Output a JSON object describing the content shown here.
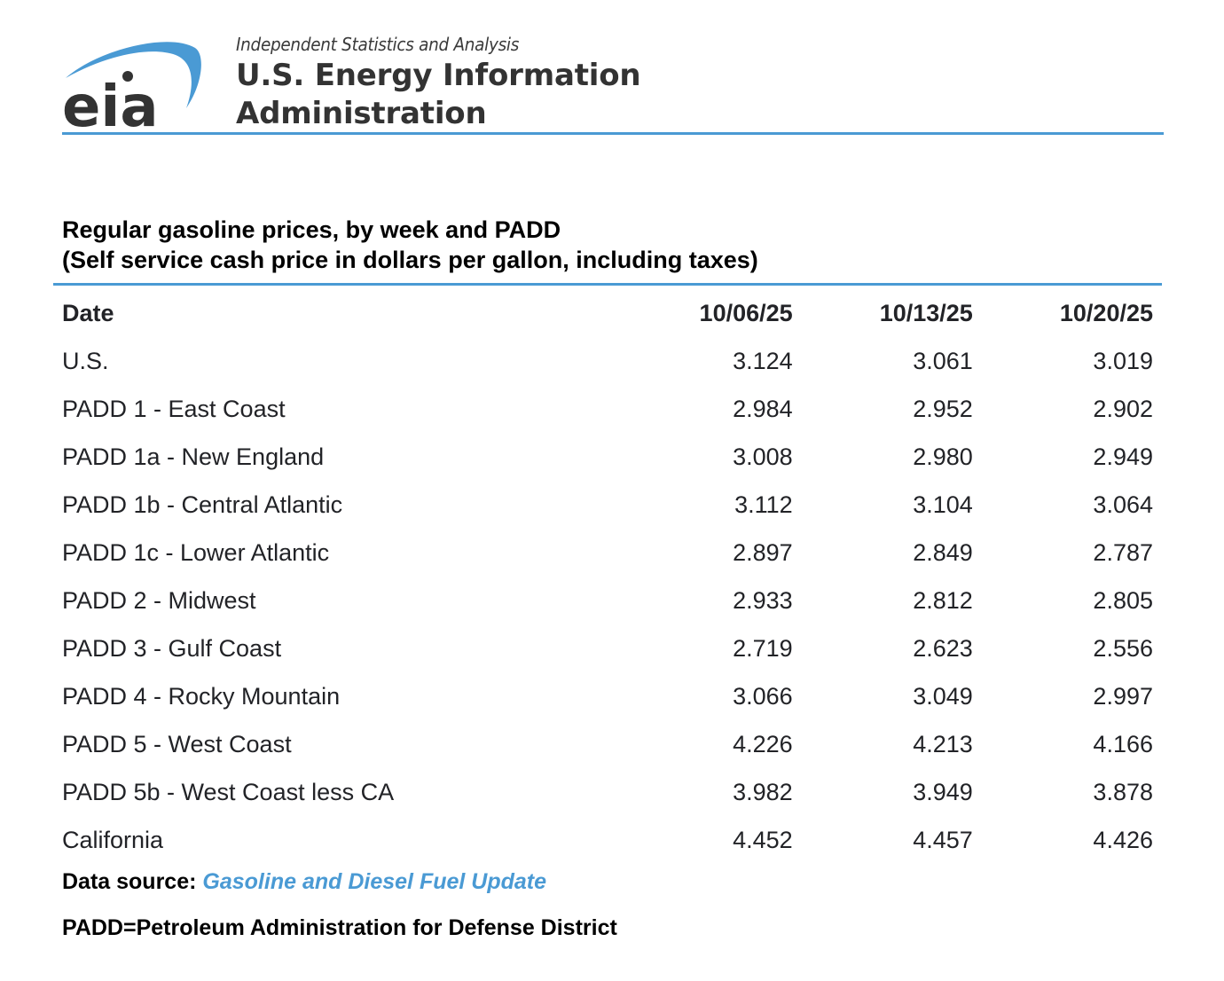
{
  "header": {
    "logo_text": "eia",
    "tagline": "Independent Statistics and Analysis",
    "agency_line1": "U.S. Energy Information",
    "agency_line2": "Administration",
    "accent_color": "#4a9ad4"
  },
  "title": {
    "line1": "Regular gasoline prices, by week and PADD",
    "line2": "(Self service cash price in dollars per gallon, including taxes)"
  },
  "table": {
    "columns": [
      "Date",
      "10/06/25",
      "10/13/25",
      "10/20/25"
    ],
    "rows": [
      {
        "label": "U.S.",
        "values": [
          "3.124",
          "3.061",
          "3.019"
        ]
      },
      {
        "label": "PADD 1 - East Coast",
        "values": [
          "2.984",
          "2.952",
          "2.902"
        ]
      },
      {
        "label": "PADD 1a - New England",
        "values": [
          "3.008",
          "2.980",
          "2.949"
        ]
      },
      {
        "label": "PADD 1b - Central Atlantic",
        "values": [
          "3.112",
          "3.104",
          "3.064"
        ]
      },
      {
        "label": "PADD 1c - Lower Atlantic",
        "values": [
          "2.897",
          "2.849",
          "2.787"
        ]
      },
      {
        "label": "PADD 2 - Midwest",
        "values": [
          "2.933",
          "2.812",
          "2.805"
        ]
      },
      {
        "label": "PADD 3 - Gulf Coast",
        "values": [
          "2.719",
          "2.623",
          "2.556"
        ]
      },
      {
        "label": "PADD 4 - Rocky Mountain",
        "values": [
          "3.066",
          "3.049",
          "2.997"
        ]
      },
      {
        "label": "PADD 5 - West Coast",
        "values": [
          "4.226",
          "4.213",
          "4.166"
        ]
      },
      {
        "label": "PADD 5b - West Coast less CA",
        "values": [
          "3.982",
          "3.949",
          "3.878"
        ]
      },
      {
        "label": "California",
        "values": [
          "4.452",
          "4.457",
          "4.426"
        ]
      }
    ]
  },
  "footer": {
    "source_label": "Data source:",
    "source_link": "Gasoline and Diesel Fuel Update",
    "note": "PADD=Petroleum Administration for Defense District"
  }
}
